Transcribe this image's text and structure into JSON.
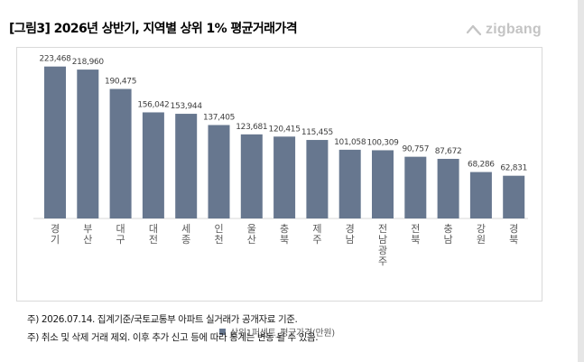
{
  "header": {
    "title": "[그림3] 2026년 상반기, 지역별 상위 1% 평균거래가격",
    "brand": "zigbang"
  },
  "chart_data": {
    "type": "bar",
    "categories": [
      "경기",
      "부산",
      "대구",
      "대전",
      "세종",
      "인천",
      "울산",
      "충북",
      "제주",
      "경남",
      "전남광주",
      "전북",
      "충남",
      "강원",
      "경북"
    ],
    "series": [
      {
        "name": "상위1퍼센트_평균가격(만원)",
        "values": [
          223468,
          218960,
          190475,
          156042,
          153944,
          137405,
          123681,
          120415,
          115455,
          101058,
          100309,
          90757,
          87672,
          68286,
          62831
        ],
        "labels": [
          "223,468",
          "218,960",
          "190,475",
          "156,042",
          "153,944",
          "137,405",
          "123,681",
          "120,415",
          "115,455",
          "101,058",
          "100,309",
          "90,757",
          "87,672",
          "68,286",
          "62,831"
        ]
      }
    ],
    "ylim": [
      0,
      235000
    ],
    "bar_color": "#67778f",
    "legend_position": "bottom",
    "grid": false
  },
  "notes": {
    "line1": "주) 2026.07.14. 집계기준/국토교통부 아파트 실거래가 공개자료 기준.",
    "line2": "주) 취소 및 삭제 거래 제외. 이후 추가 신고 등에 따라 통계는 변동 될 수 있음."
  }
}
